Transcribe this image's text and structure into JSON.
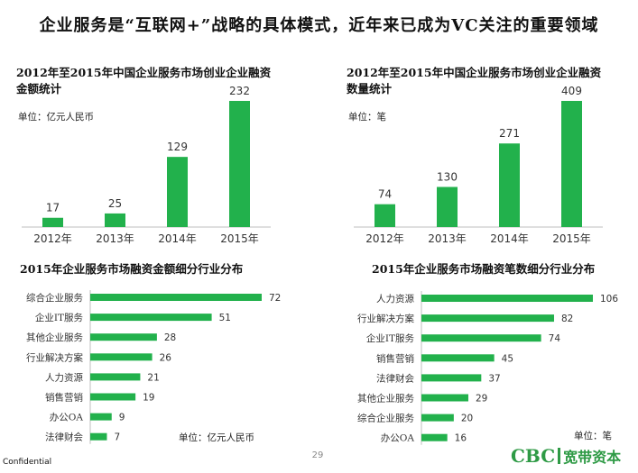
{
  "page": {
    "title": "企业服务是“互联网+”战略的具体模式，近年来已成为VC关注的重要领域",
    "confidential": "Confidential",
    "page_number": "29",
    "logo_main": "CBC",
    "logo_cn": "宽带资本",
    "bar_color": "#22b14c"
  },
  "chart_data": [
    {
      "type": "bar",
      "title_lines": [
        "2012年至2015年中国企业服务市场创业企业融资",
        "金额统计"
      ],
      "unit": "单位：亿元人民币",
      "categories": [
        "2012年",
        "2013年",
        "2014年",
        "2015年"
      ],
      "values": [
        17,
        25,
        129,
        232
      ],
      "ylim": [
        0,
        232
      ]
    },
    {
      "type": "bar",
      "title_lines": [
        "2012年至2015年中国企业服务市场创业企业融资",
        "数量统计"
      ],
      "unit": "单位：笔",
      "categories": [
        "2012年",
        "2013年",
        "2014年",
        "2015年"
      ],
      "values": [
        74,
        130,
        271,
        409
      ],
      "ylim": [
        0,
        409
      ]
    },
    {
      "type": "bar",
      "orientation": "horizontal",
      "title": "2015年企业服务市场融资金额细分行业分布",
      "unit": "单位：亿元人民币",
      "categories": [
        "综合企业服务",
        "企业IT服务",
        "其他企业服务",
        "行业解决方案",
        "人力资源",
        "销售营销",
        "办公OA",
        "法律财会"
      ],
      "values": [
        72,
        51,
        28,
        26,
        21,
        19,
        9,
        7
      ],
      "xlim": [
        0,
        72
      ]
    },
    {
      "type": "bar",
      "orientation": "horizontal",
      "title": "2015年企业服务市场融资笔数细分行业分布",
      "unit": "单位：笔",
      "categories": [
        "人力资源",
        "行业解决方案",
        "企业IT服务",
        "销售营销",
        "法律财会",
        "其他企业服务",
        "综合企业服务",
        "办公OA"
      ],
      "values": [
        106,
        82,
        74,
        45,
        37,
        29,
        20,
        16
      ],
      "xlim": [
        0,
        106
      ]
    }
  ]
}
